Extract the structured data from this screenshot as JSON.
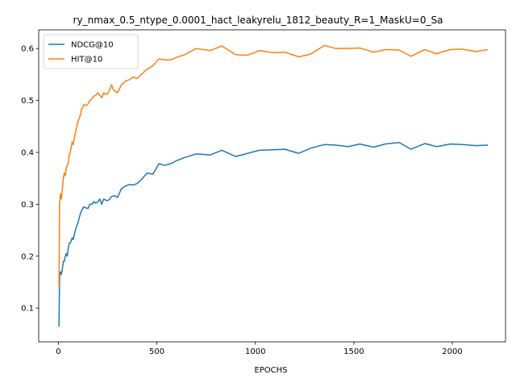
{
  "chart_data": {
    "type": "line",
    "title": "ry_nmax_0.5_ntype_0.0001_hact_leakyrelu_1812_beauty_R=1_MaskU=0_Sa",
    "xlabel": "EPOCHS",
    "ylabel": "",
    "xlim": [
      -100,
      2270
    ],
    "ylim": [
      0.035,
      0.636
    ],
    "xticks": [
      0,
      500,
      1000,
      1500,
      2000
    ],
    "yticks": [
      0.1,
      0.2,
      0.3,
      0.4,
      0.5,
      0.6
    ],
    "grid": false,
    "legend": "top-left",
    "series": [
      {
        "name": "NDCG@10",
        "color": "#1f77b4",
        "x": [
          1,
          3,
          6,
          10,
          15,
          20,
          25,
          30,
          35,
          40,
          45,
          50,
          55,
          60,
          65,
          70,
          75,
          80,
          90,
          100,
          110,
          120,
          130,
          140,
          150,
          160,
          170,
          180,
          190,
          200,
          210,
          220,
          230,
          240,
          250,
          260,
          270,
          280,
          290,
          300,
          320,
          340,
          360,
          380,
          400,
          420,
          450,
          480,
          510,
          540,
          570,
          600,
          640,
          700,
          770,
          830,
          900,
          960,
          1020,
          1090,
          1150,
          1220,
          1280,
          1350,
          1410,
          1470,
          1530,
          1600,
          1660,
          1730,
          1790,
          1860,
          1920,
          1990,
          2050,
          2120,
          2180
        ],
        "values": [
          0.065,
          0.065,
          0.16,
          0.17,
          0.165,
          0.175,
          0.19,
          0.19,
          0.2,
          0.205,
          0.2,
          0.215,
          0.225,
          0.225,
          0.23,
          0.235,
          0.232,
          0.24,
          0.255,
          0.265,
          0.28,
          0.29,
          0.295,
          0.293,
          0.292,
          0.3,
          0.3,
          0.305,
          0.302,
          0.305,
          0.31,
          0.3,
          0.31,
          0.308,
          0.307,
          0.31,
          0.315,
          0.316,
          0.316,
          0.313,
          0.33,
          0.335,
          0.338,
          0.337,
          0.34,
          0.347,
          0.36,
          0.358,
          0.378,
          0.375,
          0.378,
          0.384,
          0.39,
          0.397,
          0.395,
          0.404,
          0.392,
          0.398,
          0.404,
          0.405,
          0.406,
          0.398,
          0.408,
          0.415,
          0.414,
          0.411,
          0.416,
          0.41,
          0.416,
          0.419,
          0.406,
          0.417,
          0.411,
          0.416,
          0.415,
          0.413,
          0.414
        ]
      },
      {
        "name": "HIT@10",
        "color": "#ff7f0e",
        "x": [
          1,
          3,
          6,
          10,
          15,
          20,
          25,
          30,
          35,
          40,
          45,
          50,
          55,
          60,
          65,
          70,
          75,
          80,
          90,
          100,
          110,
          120,
          130,
          140,
          150,
          160,
          170,
          180,
          190,
          200,
          210,
          220,
          230,
          240,
          250,
          260,
          270,
          280,
          290,
          300,
          320,
          340,
          360,
          380,
          400,
          420,
          450,
          480,
          510,
          540,
          570,
          600,
          640,
          700,
          770,
          830,
          900,
          960,
          1020,
          1090,
          1150,
          1220,
          1280,
          1350,
          1410,
          1470,
          1530,
          1600,
          1660,
          1730,
          1790,
          1860,
          1920,
          1990,
          2050,
          2120,
          2180
        ],
        "values": [
          0.14,
          0.14,
          0.3,
          0.32,
          0.31,
          0.33,
          0.35,
          0.36,
          0.355,
          0.37,
          0.375,
          0.38,
          0.395,
          0.4,
          0.41,
          0.42,
          0.415,
          0.425,
          0.445,
          0.46,
          0.47,
          0.485,
          0.492,
          0.49,
          0.493,
          0.5,
          0.503,
          0.508,
          0.51,
          0.515,
          0.51,
          0.505,
          0.515,
          0.512,
          0.513,
          0.52,
          0.53,
          0.52,
          0.517,
          0.515,
          0.53,
          0.537,
          0.54,
          0.545,
          0.542,
          0.55,
          0.56,
          0.567,
          0.58,
          0.578,
          0.578,
          0.583,
          0.588,
          0.6,
          0.596,
          0.605,
          0.588,
          0.587,
          0.596,
          0.592,
          0.593,
          0.584,
          0.589,
          0.606,
          0.6,
          0.6,
          0.601,
          0.593,
          0.598,
          0.597,
          0.585,
          0.598,
          0.59,
          0.598,
          0.599,
          0.594,
          0.598
        ]
      }
    ]
  }
}
